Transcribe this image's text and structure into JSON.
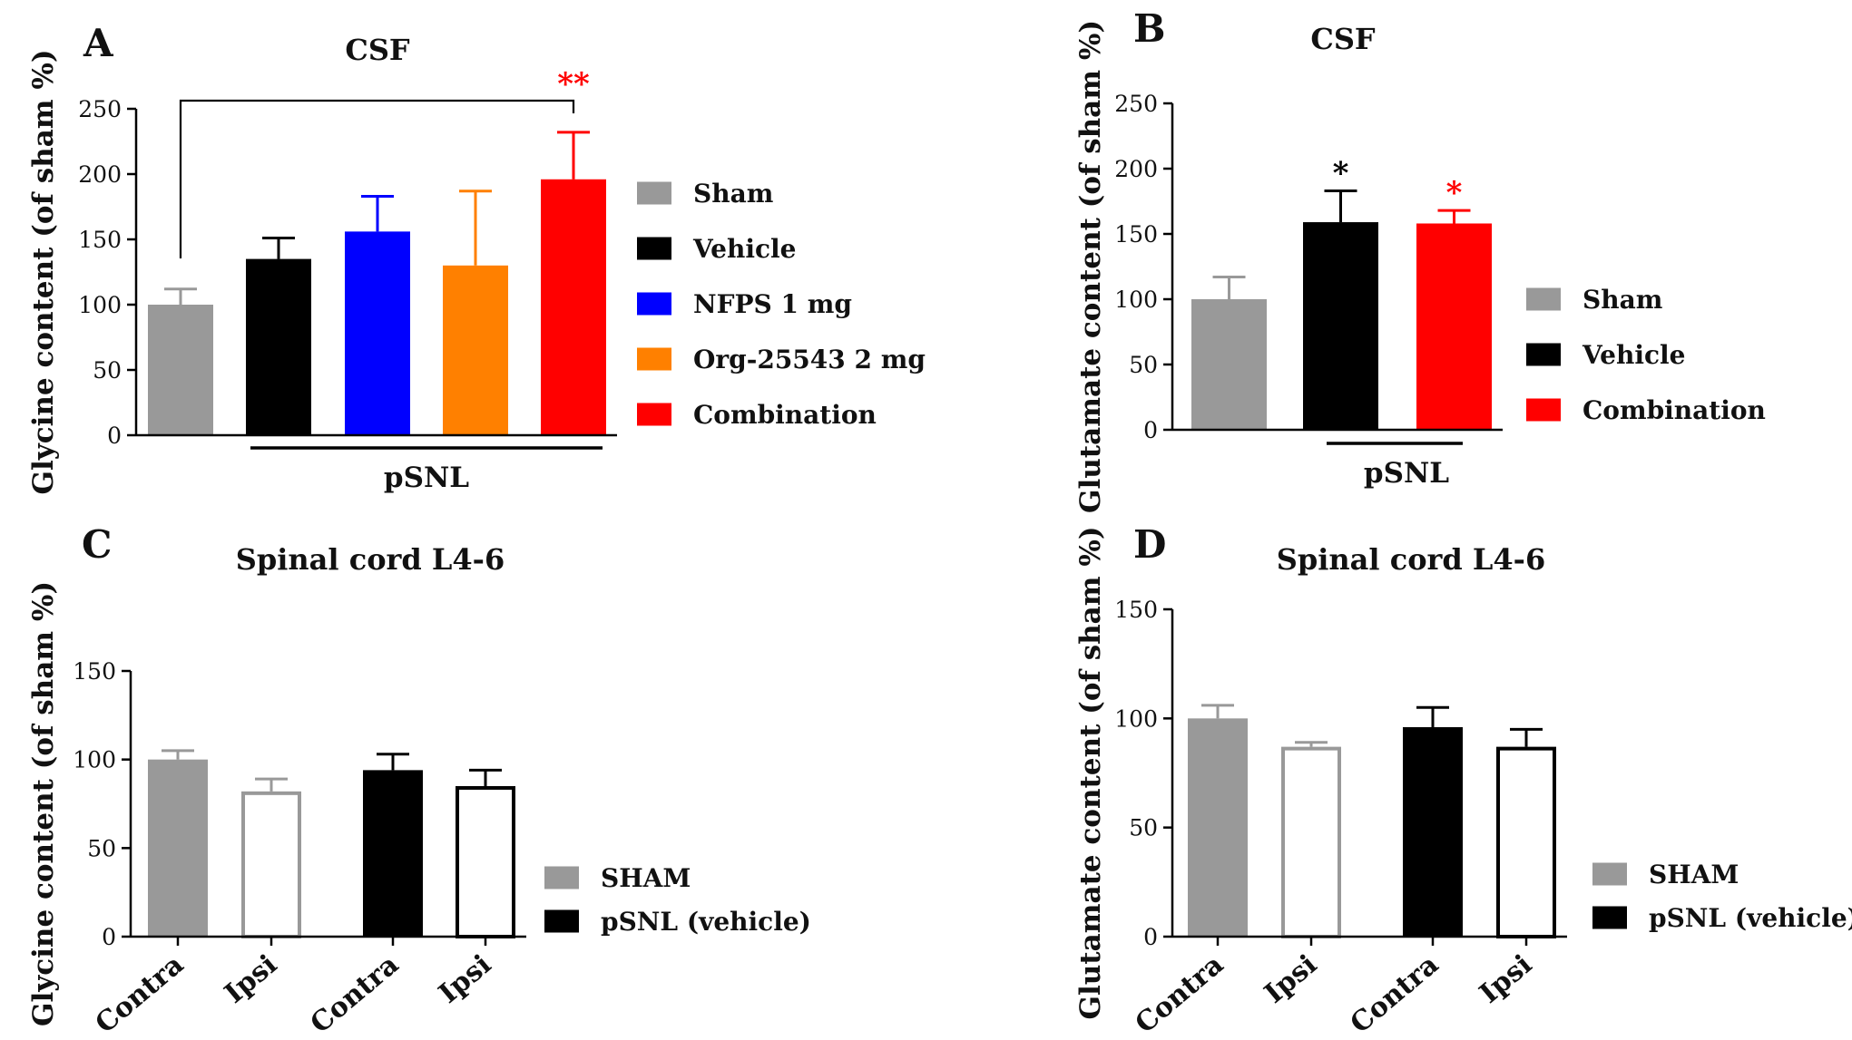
{
  "panels": [
    {
      "letter": "A",
      "chart_data": {
        "type": "bar",
        "title": "CSF",
        "ylabel": "Glycine content (of sham %)",
        "ylim": [
          0,
          250
        ],
        "yticks": [
          0,
          50,
          100,
          150,
          200,
          250
        ],
        "bars": [
          {
            "name": "Sham",
            "value": 100,
            "error": 12,
            "color": "#999999",
            "fill": "solid"
          },
          {
            "name": "Vehicle",
            "value": 135,
            "error": 16,
            "color": "#000000",
            "fill": "solid"
          },
          {
            "name": "NFPS 1 mg",
            "value": 156,
            "error": 27,
            "color": "#0000ff",
            "fill": "solid"
          },
          {
            "name": "Org-25543 2 mg",
            "value": 130,
            "error": 57,
            "color": "#ff8000",
            "fill": "solid"
          },
          {
            "name": "Combination",
            "value": 196,
            "error": 36,
            "color": "#ff0000",
            "fill": "solid"
          }
        ],
        "group_label": "pSNL",
        "significance": {
          "text": "**",
          "color": "#ff0000"
        },
        "legend": [
          "Sham",
          "Vehicle",
          "NFPS 1 mg",
          "Org-25543 2 mg",
          "Combination"
        ]
      }
    },
    {
      "letter": "B",
      "chart_data": {
        "type": "bar",
        "title": "CSF",
        "ylabel": "Glutamate content (of sham %)",
        "ylim": [
          0,
          250
        ],
        "yticks": [
          0,
          50,
          100,
          150,
          200,
          250
        ],
        "bars": [
          {
            "name": "Sham",
            "value": 100,
            "error": 17,
            "color": "#999999",
            "fill": "solid"
          },
          {
            "name": "Vehicle",
            "value": 159,
            "error": 24,
            "color": "#000000",
            "fill": "solid",
            "sig": "*",
            "sig_color": "#000000"
          },
          {
            "name": "Combination",
            "value": 158,
            "error": 10,
            "color": "#ff0000",
            "fill": "solid",
            "sig": "*",
            "sig_color": "#ff0000"
          }
        ],
        "group_label": "pSNL",
        "legend": [
          "Sham",
          "Vehicle",
          "Combination"
        ]
      }
    },
    {
      "letter": "C",
      "chart_data": {
        "type": "bar",
        "title": "Spinal cord L4-6",
        "ylabel": "Glycine content (of sham %)",
        "ylim": [
          0,
          150
        ],
        "yticks": [
          0,
          50,
          100,
          150
        ],
        "categories": [
          "Contra",
          "Ipsi",
          "Contra",
          "Ipsi"
        ],
        "bars": [
          {
            "name": "Contra",
            "value": 100,
            "error": 5,
            "color": "#999999",
            "fill": "solid"
          },
          {
            "name": "Ipsi",
            "value": 82,
            "error": 7,
            "color": "#999999",
            "fill": "open"
          },
          {
            "name": "Contra",
            "value": 94,
            "error": 9,
            "color": "#000000",
            "fill": "solid"
          },
          {
            "name": "Ipsi",
            "value": 85,
            "error": 9,
            "color": "#000000",
            "fill": "open"
          }
        ],
        "legend": [
          "SHAM",
          "pSNL (vehicle)"
        ]
      }
    },
    {
      "letter": "D",
      "chart_data": {
        "type": "bar",
        "title": "Spinal cord L4-6",
        "ylabel": "Glutamate content (of sham %)",
        "ylim": [
          0,
          150
        ],
        "yticks": [
          0,
          50,
          100,
          150
        ],
        "categories": [
          "Contra",
          "Ipsi",
          "Contra",
          "Ipsi"
        ],
        "bars": [
          {
            "name": "Contra",
            "value": 100,
            "error": 6,
            "color": "#999999",
            "fill": "solid"
          },
          {
            "name": "Ipsi",
            "value": 87,
            "error": 2,
            "color": "#999999",
            "fill": "open"
          },
          {
            "name": "Contra",
            "value": 96,
            "error": 9,
            "color": "#000000",
            "fill": "solid"
          },
          {
            "name": "Ipsi",
            "value": 87,
            "error": 8,
            "color": "#000000",
            "fill": "open"
          }
        ],
        "legend": [
          "SHAM",
          "pSNL (vehicle)"
        ]
      }
    }
  ],
  "colors": {
    "sham": "#999999",
    "vehicle": "#000000",
    "nfps": "#0000ff",
    "org": "#ff8000",
    "combination": "#ff0000"
  }
}
